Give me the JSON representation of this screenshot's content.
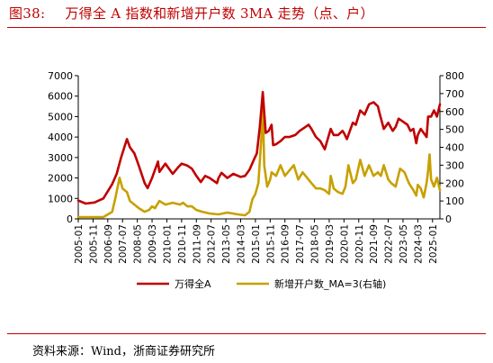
{
  "figure": {
    "number": "图38:",
    "title": "万得全 A 指数和新增开户数 3MA 走势（点、户）",
    "source": "资料来源：Wind，浙商证券研究所"
  },
  "colors": {
    "title": "#c00000",
    "series_index": "#c00000",
    "series_accounts": "#c8a000"
  },
  "chart_data": {
    "type": "line",
    "title": "",
    "xlabel": "",
    "ylabel": "",
    "y2label": "",
    "ylim": [
      0,
      7000
    ],
    "y2lim": [
      0,
      800
    ],
    "yticks": [
      "0",
      "1000",
      "2000",
      "3000",
      "4000",
      "5000",
      "6000",
      "7000"
    ],
    "y2ticks": [
      "0",
      "100",
      "200",
      "300",
      "400",
      "500",
      "600",
      "700",
      "800"
    ],
    "x_start": "2005-01",
    "x_end": "2025-06",
    "xticks": [
      "2005-01",
      "2005-11",
      "2006-09",
      "2007-07",
      "2008-05",
      "2009-03",
      "2010-01",
      "2010-11",
      "2011-09",
      "2012-07",
      "2013-05",
      "2014-03",
      "2015-01",
      "2015-11",
      "2016-09",
      "2017-07",
      "2018-05",
      "2019-03",
      "2020-01",
      "2020-11",
      "2021-09",
      "2022-07",
      "2023-05",
      "2024-03",
      "2025-01"
    ],
    "grid": false,
    "legend_position": "bottom",
    "series": [
      {
        "name": "万得全A",
        "axis": "left",
        "x": [
          "2005-01",
          "2005-06",
          "2005-12",
          "2006-06",
          "2006-12",
          "2007-03",
          "2007-06",
          "2007-10",
          "2007-12",
          "2008-03",
          "2008-06",
          "2008-10",
          "2008-12",
          "2009-03",
          "2009-07",
          "2009-08",
          "2009-12",
          "2010-05",
          "2010-09",
          "2010-11",
          "2011-03",
          "2011-06",
          "2011-09",
          "2011-12",
          "2012-03",
          "2012-06",
          "2012-11",
          "2012-12",
          "2013-02",
          "2013-06",
          "2013-10",
          "2014-03",
          "2014-06",
          "2014-09",
          "2014-12",
          "2015-02",
          "2015-04",
          "2015-06",
          "2015-07",
          "2015-08",
          "2015-10",
          "2015-12",
          "2016-01",
          "2016-03",
          "2016-06",
          "2016-09",
          "2016-12",
          "2017-04",
          "2017-07",
          "2017-11",
          "2018-01",
          "2018-03",
          "2018-06",
          "2018-09",
          "2018-12",
          "2019-02",
          "2019-04",
          "2019-06",
          "2019-09",
          "2019-12",
          "2020-01",
          "2020-03",
          "2020-07",
          "2020-09",
          "2020-12",
          "2021-03",
          "2021-06",
          "2021-09",
          "2021-12",
          "2022-01",
          "2022-04",
          "2022-07",
          "2022-10",
          "2022-12",
          "2023-02",
          "2023-05",
          "2023-08",
          "2023-10",
          "2023-12",
          "2024-02",
          "2024-03",
          "2024-05",
          "2024-07",
          "2024-09",
          "2024-10",
          "2024-12",
          "2025-02",
          "2025-04",
          "2025-06"
        ],
        "values": [
          900,
          750,
          800,
          1000,
          1700,
          2200,
          3000,
          3900,
          3500,
          3200,
          2600,
          1750,
          1500,
          2000,
          2800,
          2300,
          2700,
          2200,
          2550,
          2700,
          2600,
          2450,
          2100,
          1800,
          2100,
          2000,
          1750,
          2000,
          2250,
          2000,
          2200,
          2050,
          2100,
          2400,
          2900,
          3200,
          4500,
          6200,
          5200,
          4200,
          4300,
          4600,
          3600,
          3650,
          3800,
          4000,
          4000,
          4100,
          4300,
          4500,
          4600,
          4400,
          4000,
          3800,
          3400,
          3900,
          4400,
          4100,
          4100,
          4300,
          4200,
          3900,
          4700,
          4600,
          5300,
          5100,
          5600,
          5700,
          5500,
          5200,
          4400,
          4700,
          4300,
          4500,
          4900,
          4750,
          4600,
          4300,
          4400,
          3700,
          4100,
          4400,
          4200,
          4000,
          5000,
          5000,
          5300,
          5000,
          5600
        ]
      },
      {
        "name": "新增开户数_MA=3(右轴)",
        "axis": "right",
        "x": [
          "2005-01",
          "2006-06",
          "2006-12",
          "2007-02",
          "2007-05",
          "2007-07",
          "2007-10",
          "2007-12",
          "2008-03",
          "2008-06",
          "2008-10",
          "2009-01",
          "2009-03",
          "2009-05",
          "2009-08",
          "2009-12",
          "2010-05",
          "2010-10",
          "2010-12",
          "2011-03",
          "2011-06",
          "2011-09",
          "2012-01",
          "2012-06",
          "2012-12",
          "2013-03",
          "2013-06",
          "2014-01",
          "2014-06",
          "2014-09",
          "2014-11",
          "2015-01",
          "2015-03",
          "2015-05",
          "2015-06",
          "2015-07",
          "2015-09",
          "2015-11",
          "2015-12",
          "2016-03",
          "2016-06",
          "2016-09",
          "2016-12",
          "2017-03",
          "2017-06",
          "2017-09",
          "2017-12",
          "2018-03",
          "2018-06",
          "2018-09",
          "2018-12",
          "2019-03",
          "2019-04",
          "2019-06",
          "2019-09",
          "2019-12",
          "2020-02",
          "2020-04",
          "2020-07",
          "2020-09",
          "2020-12",
          "2021-03",
          "2021-06",
          "2021-09",
          "2021-12",
          "2022-02",
          "2022-04",
          "2022-07",
          "2022-09",
          "2022-12",
          "2023-03",
          "2023-06",
          "2023-09",
          "2023-12",
          "2024-02",
          "2024-03",
          "2024-05",
          "2024-07",
          "2024-09",
          "2024-10",
          "2024-11",
          "2024-12",
          "2025-02",
          "2025-04",
          "2025-06"
        ],
        "values": [
          10,
          10,
          40,
          110,
          230,
          170,
          150,
          100,
          80,
          60,
          40,
          50,
          70,
          60,
          100,
          80,
          90,
          80,
          90,
          70,
          70,
          50,
          40,
          30,
          25,
          30,
          35,
          25,
          20,
          40,
          110,
          140,
          200,
          450,
          650,
          300,
          180,
          220,
          260,
          240,
          300,
          240,
          270,
          300,
          220,
          260,
          230,
          200,
          170,
          170,
          160,
          140,
          240,
          170,
          150,
          140,
          180,
          300,
          200,
          220,
          330,
          240,
          300,
          240,
          260,
          240,
          300,
          220,
          200,
          180,
          280,
          260,
          200,
          160,
          130,
          190,
          170,
          120,
          200,
          270,
          360,
          220,
          180,
          230,
          160
        ]
      }
    ]
  }
}
